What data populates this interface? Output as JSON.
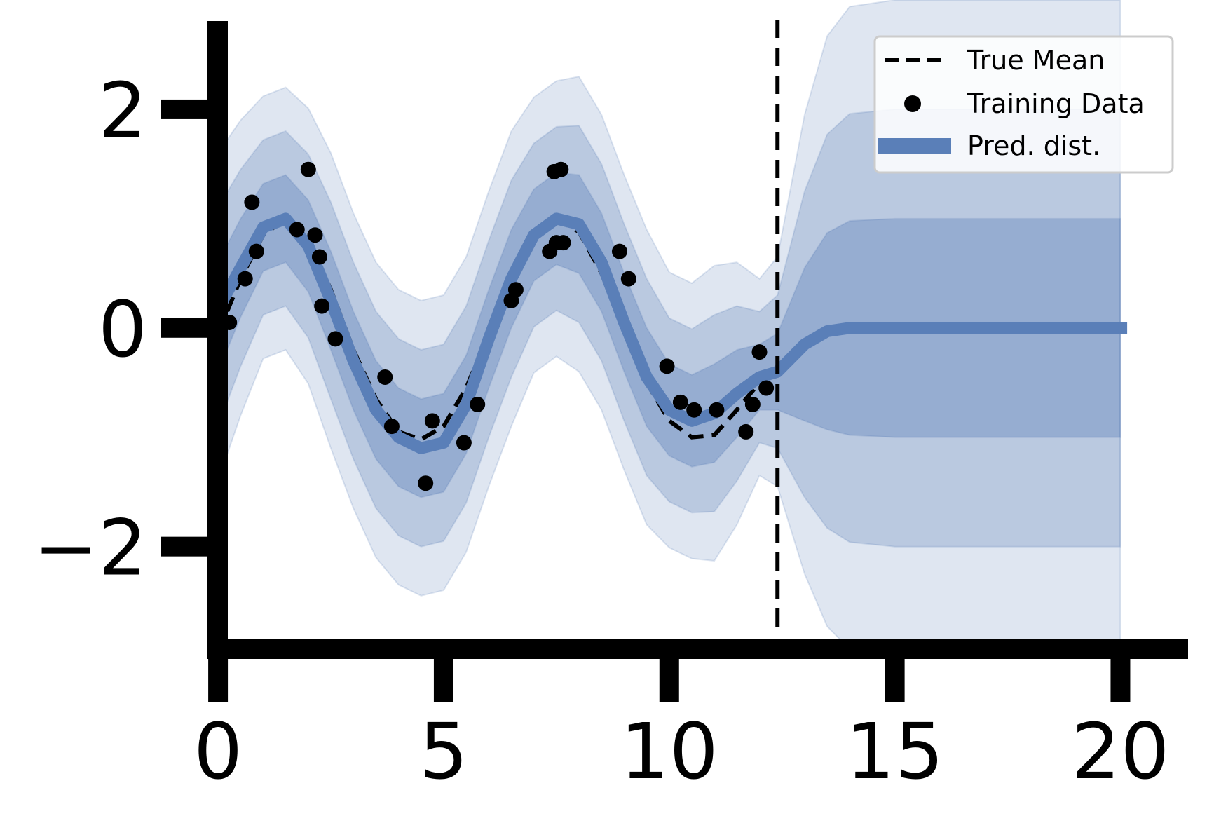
{
  "chart_data": {
    "type": "line",
    "title": "",
    "xlabel": "",
    "ylabel": "",
    "xlim": [
      -0.25,
      21.5
    ],
    "ylim": [
      -2.9,
      3.0
    ],
    "xticks": [
      0,
      5,
      10,
      15,
      20
    ],
    "yticks": [
      -2,
      0,
      2
    ],
    "xtick_labels": [
      "0",
      "5",
      "10",
      "15",
      "20"
    ],
    "ytick_labels": [
      "−2",
      "0",
      "2"
    ],
    "vline_x": 12.4,
    "grid": false,
    "legend": {
      "position": "top-right",
      "entries": [
        {
          "label": "True Mean",
          "style": "dashed-line",
          "color": "#000000"
        },
        {
          "label": "Training Data",
          "style": "marker",
          "color": "#000000"
        },
        {
          "label": "Pred. dist.",
          "style": "thick-line",
          "color": "#5a7fb8"
        }
      ]
    },
    "colors": {
      "pred": "#5a7fb8",
      "band": "#4c72b0",
      "true_mean": "#000000",
      "points": "#000000"
    },
    "series": [
      {
        "name": "True Mean",
        "style": "dashed",
        "x": [
          0,
          0.5,
          1.0,
          1.5,
          2.0,
          2.5,
          3.0,
          3.5,
          4.0,
          4.5,
          5.0,
          5.5,
          6.0,
          6.5,
          7.0,
          7.5,
          8.0,
          8.5,
          9.0,
          9.5,
          10.0,
          10.5,
          11.0,
          11.5,
          12.0,
          12.4
        ],
        "y": [
          -0.05,
          0.45,
          0.85,
          1.0,
          0.8,
          0.35,
          -0.2,
          -0.65,
          -0.95,
          -1.02,
          -0.9,
          -0.55,
          -0.05,
          0.45,
          0.85,
          1.0,
          0.88,
          0.5,
          0.0,
          -0.5,
          -0.85,
          -1.0,
          -0.98,
          -0.75,
          -0.5,
          -0.35
        ]
      },
      {
        "name": "Pred. dist.",
        "style": "mean",
        "x": [
          -0.1,
          0.5,
          1.0,
          1.5,
          2.0,
          2.5,
          3.0,
          3.5,
          4.0,
          4.5,
          5.0,
          5.5,
          6.0,
          6.5,
          7.0,
          7.5,
          8.0,
          8.5,
          9.0,
          9.5,
          10.0,
          10.5,
          11.0,
          11.5,
          12.0,
          12.4,
          13.0,
          13.5,
          14.0,
          15.0,
          16.0,
          18.0,
          20.0,
          20.15
        ],
        "y": [
          0.1,
          0.55,
          0.92,
          1.0,
          0.75,
          0.25,
          -0.3,
          -0.75,
          -1.0,
          -1.1,
          -1.05,
          -0.7,
          -0.1,
          0.45,
          0.85,
          1.0,
          0.95,
          0.6,
          0.05,
          -0.45,
          -0.75,
          -0.85,
          -0.78,
          -0.6,
          -0.45,
          -0.4,
          -0.15,
          -0.03,
          0.0,
          0.0,
          0.0,
          0.0,
          0.0,
          0.0
        ]
      }
    ],
    "bands": {
      "x": [
        0,
        0.5,
        1.0,
        1.5,
        2.0,
        2.5,
        3.0,
        3.5,
        4.0,
        4.5,
        5.0,
        5.5,
        6.0,
        6.5,
        7.0,
        7.5,
        8.0,
        8.5,
        9.0,
        9.5,
        10.0,
        10.5,
        11.0,
        11.5,
        12.0,
        12.4,
        13.0,
        13.5,
        14.0,
        15.0,
        16.0,
        18.0,
        20.0
      ],
      "mean": [
        0.1,
        0.55,
        0.92,
        1.0,
        0.75,
        0.25,
        -0.3,
        -0.75,
        -1.0,
        -1.1,
        -1.05,
        -0.7,
        -0.1,
        0.45,
        0.85,
        1.0,
        0.95,
        0.6,
        0.05,
        -0.45,
        -0.75,
        -0.85,
        -0.78,
        -0.6,
        -0.45,
        -0.4,
        -0.15,
        -0.03,
        0.0,
        0.0,
        0.0,
        0.0,
        0.0
      ],
      "sigma": [
        0.5,
        0.45,
        0.4,
        0.4,
        0.42,
        0.45,
        0.45,
        0.45,
        0.45,
        0.45,
        0.45,
        0.45,
        0.45,
        0.45,
        0.42,
        0.42,
        0.45,
        0.45,
        0.45,
        0.45,
        0.42,
        0.42,
        0.45,
        0.4,
        0.3,
        0.35,
        0.7,
        0.9,
        0.98,
        1.0,
        1.0,
        1.0,
        1.0
      ]
    },
    "points": {
      "name": "Training Data",
      "x": [
        0.25,
        0.6,
        0.75,
        0.85,
        1.75,
        2.0,
        2.15,
        2.25,
        2.3,
        2.6,
        3.7,
        3.85,
        4.6,
        4.75,
        5.45,
        5.75,
        6.5,
        6.6,
        7.35,
        7.45,
        7.5,
        7.6,
        7.65,
        8.9,
        9.1,
        9.95,
        10.25,
        10.55,
        11.05,
        11.7,
        11.85,
        12.0,
        12.15
      ],
      "y": [
        0.05,
        0.45,
        1.15,
        0.7,
        0.9,
        1.45,
        0.85,
        0.65,
        0.2,
        -0.1,
        -0.45,
        -0.9,
        -1.42,
        -0.85,
        -1.05,
        -0.7,
        0.25,
        0.35,
        0.7,
        1.43,
        0.78,
        1.45,
        0.78,
        0.7,
        0.45,
        -0.35,
        -0.68,
        -0.75,
        -0.75,
        -0.95,
        -0.7,
        -0.22,
        -0.55
      ]
    }
  }
}
